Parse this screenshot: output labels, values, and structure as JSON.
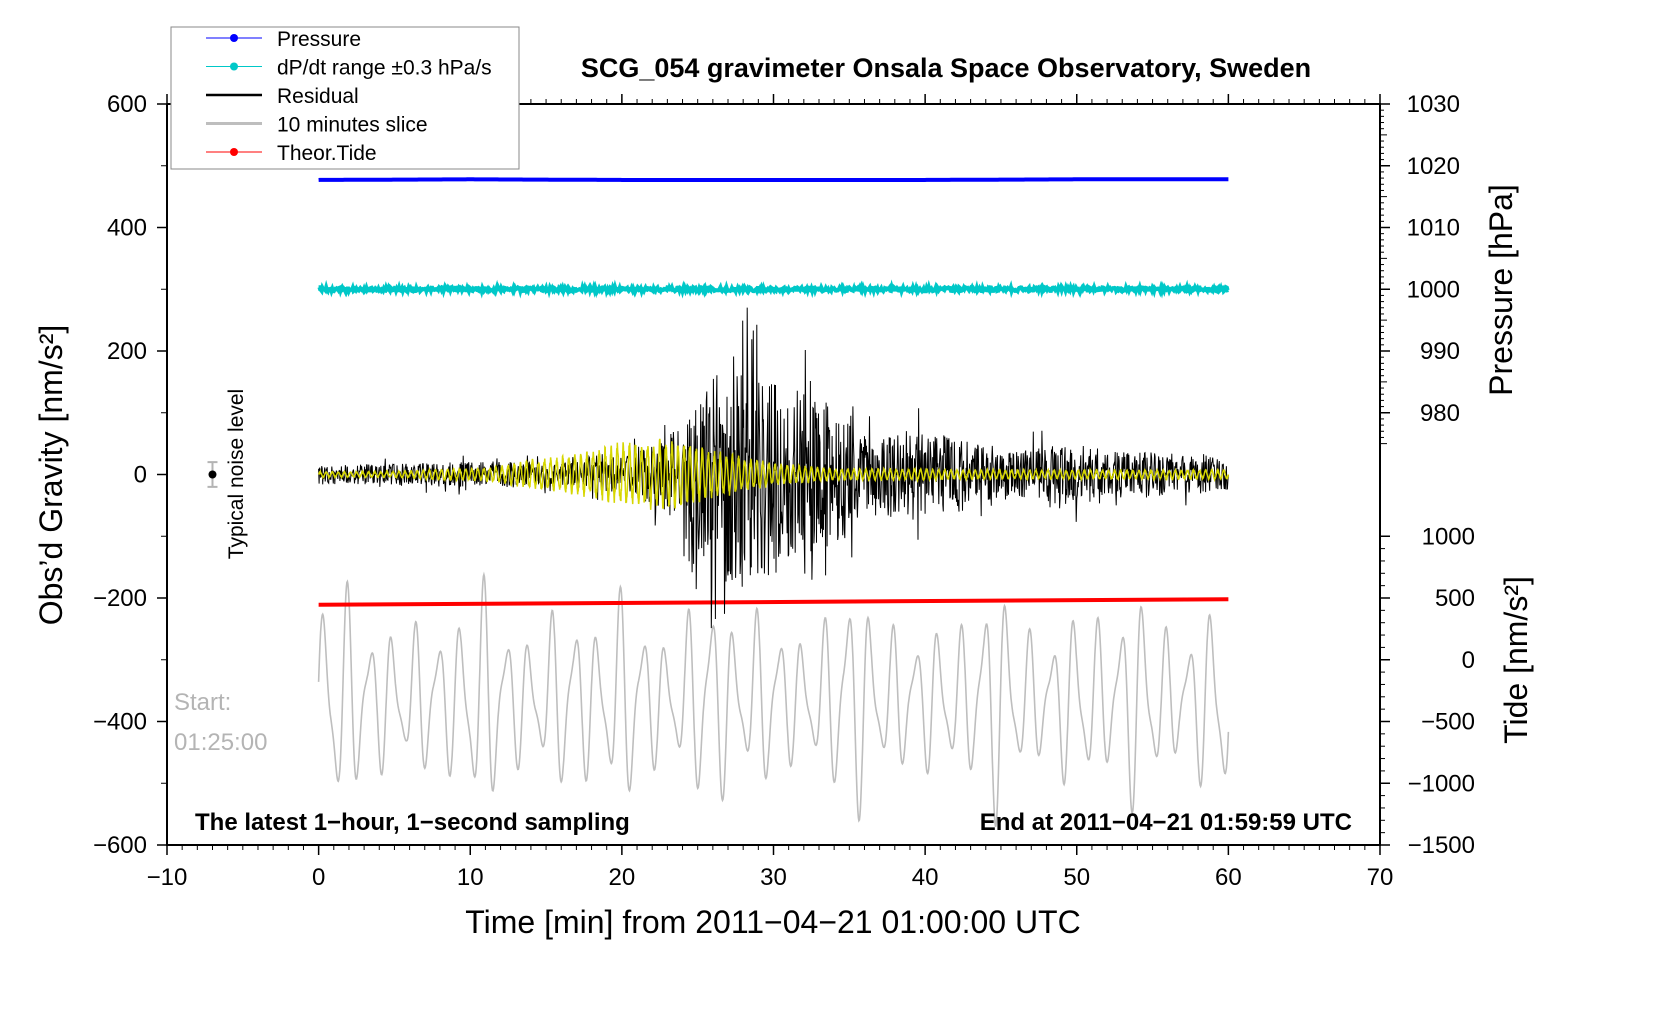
{
  "chart_data": {
    "type": "line",
    "title": "SCG_054 gravimeter Onsala Space Observatory, Sweden",
    "xlabel": "Time [min] from 2011−04−21 01:00:00 UTC",
    "ylabel": "Obs’d Gravity [nm/s²]",
    "ylabel_right_top": "Pressure [hPa]",
    "ylabel_right_bottom": "Tide [nm/s²]",
    "xlim": [
      -10,
      70
    ],
    "ylim": [
      -600,
      600
    ],
    "pressure_lim": [
      930,
      1030
    ],
    "tide_lim": [
      -1500,
      1000
    ],
    "x_ticks": [
      "−10",
      "0",
      "10",
      "20",
      "30",
      "40",
      "50",
      "60",
      "70"
    ],
    "y_ticks": [
      "−600",
      "−400",
      "−200",
      "0",
      "200",
      "400",
      "600"
    ],
    "pressure_ticks": [
      "980",
      "990",
      "1000",
      "1010",
      "1020",
      "1030"
    ],
    "tide_ticks": [
      "−1500",
      "−1000",
      "−500",
      "0",
      "500",
      "1000"
    ],
    "legend": {
      "placement": "top-left",
      "entries": [
        {
          "label": "Pressure",
          "color": "#0000ff"
        },
        {
          "label": "dP/dt range ±0.3 hPa/s",
          "color": "#00c8c8"
        },
        {
          "label": "Residual",
          "color": "#000000"
        },
        {
          "label": "10 minutes slice",
          "color": "#bebebe"
        },
        {
          "label": "Theor.Tide",
          "color": "#ff0000"
        }
      ]
    },
    "annotations": {
      "noise_label": "Typical noise level",
      "start_label": "Start:",
      "start_time": "01:25:00",
      "sampling_note": "The latest 1−hour, 1−second sampling",
      "end_note": "End at 2011−04−21 01:59:59 UTC"
    },
    "series": [
      {
        "name": "Pressure",
        "unit": "hPa",
        "x_range": [
          0,
          60
        ],
        "values_approx": [
          1017.7,
          1017.8,
          1017.7,
          1017.7,
          1017.7,
          1017.8,
          1017.8
        ]
      },
      {
        "name": "dP/dt range",
        "plot_level": 300
      },
      {
        "name": "Residual",
        "unit": "nm/s2",
        "x": [
          0,
          2,
          4,
          6,
          8,
          10,
          12,
          14,
          16,
          18,
          20,
          22,
          24,
          26,
          28,
          30,
          32,
          34,
          36,
          38,
          40,
          42,
          44,
          46,
          48,
          50,
          52,
          54,
          56,
          58,
          60
        ],
        "envelope": [
          20,
          20,
          20,
          22,
          25,
          25,
          28,
          25,
          22,
          30,
          40,
          60,
          100,
          200,
          240,
          200,
          170,
          140,
          80,
          90,
          90,
          80,
          55,
          45,
          60,
          60,
          50,
          45,
          45,
          40,
          30
        ],
        "filtered_envelope": [
          5,
          5,
          5,
          6,
          10,
          10,
          15,
          25,
          30,
          40,
          55,
          60,
          55,
          40,
          30,
          20,
          15,
          10,
          10,
          10,
          10,
          8,
          8,
          8,
          8,
          8,
          8,
          8,
          8,
          8,
          8
        ]
      },
      {
        "name": "10 minutes slice",
        "plot_center": -365,
        "amplitude_max": 200,
        "period_min": 1.5
      },
      {
        "name": "Theor.Tide",
        "unit": "nm/s2",
        "x": [
          0,
          60
        ],
        "values": [
          445,
          490
        ]
      }
    ],
    "noise_level": {
      "x": -7,
      "y": 0,
      "error": 20
    }
  },
  "colors": {
    "pressure": "#0000ff",
    "dpdt": "#00c8c8",
    "residual": "#000000",
    "filtered": "#d6d600",
    "slice": "#bebebe",
    "tide": "#ff0000"
  }
}
